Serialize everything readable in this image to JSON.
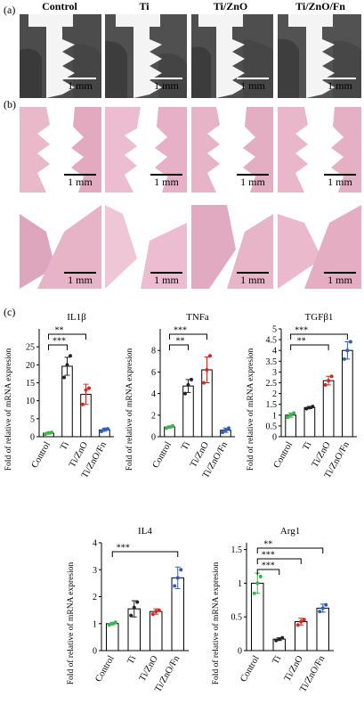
{
  "panel_a": {
    "label": "(a)",
    "columns": [
      "Control",
      "Ti",
      "Ti/ZnO",
      "Ti/ZnO/Fn"
    ],
    "scale_label": "1 mm"
  },
  "panel_b": {
    "label": "(b)",
    "scale_label": "1 mm"
  },
  "panel_c": {
    "label": "(c)"
  },
  "chart_data": [
    {
      "type": "bar",
      "title": "IL1β",
      "ylabel": "Fold of relative of mRNA expresion",
      "categories": [
        "Control",
        "Ti",
        "Ti/ZnO",
        "Ti/ZnO/Fn"
      ],
      "values": [
        1.0,
        19.6,
        11.8,
        1.9
      ],
      "errors": [
        0.3,
        2.5,
        2.8,
        0.4
      ],
      "points": [
        [
          0.7,
          1.1,
          1.2
        ],
        [
          16.5,
          20.0,
          22.5
        ],
        [
          9.0,
          13.0,
          13.5
        ],
        [
          1.5,
          2.1,
          2.2
        ]
      ],
      "ylim": [
        0,
        30
      ],
      "yticks": [
        0,
        5,
        10,
        15,
        20,
        25
      ],
      "point_colors": [
        "#3cb44b",
        "#222222",
        "#d7281f",
        "#2f5fb3"
      ],
      "significance": [
        {
          "from": 0,
          "to": 2,
          "label": "**"
        },
        {
          "from": 0,
          "to": 1,
          "label": "***"
        }
      ]
    },
    {
      "type": "bar",
      "title": "TNFa",
      "ylabel": "Fold of relative of mRNA expresion",
      "categories": [
        "Control",
        "Ti",
        "Ti/ZnO",
        "Ti/ZnO/Fn"
      ],
      "values": [
        0.9,
        4.7,
        6.2,
        0.6
      ],
      "errors": [
        0.1,
        0.6,
        1.2,
        0.2
      ],
      "points": [
        [
          0.8,
          0.9,
          1.0
        ],
        [
          4.0,
          4.8,
          5.3
        ],
        [
          5.0,
          6.2,
          7.5
        ],
        [
          0.4,
          0.6,
          0.8
        ]
      ],
      "ylim": [
        0,
        10
      ],
      "yticks": [
        0,
        2,
        4,
        6,
        8
      ],
      "point_colors": [
        "#3cb44b",
        "#222222",
        "#d7281f",
        "#2f5fb3"
      ],
      "significance": [
        {
          "from": 0,
          "to": 2,
          "label": "***"
        },
        {
          "from": 0,
          "to": 1,
          "label": "**"
        }
      ]
    },
    {
      "type": "bar",
      "title": "TGFβ1",
      "ylabel": "Fold of relative of mRNA expresion",
      "categories": [
        "Control",
        "Ti",
        "Ti/ZnO",
        "Ti/ZnO/Fn"
      ],
      "values": [
        1.0,
        1.35,
        2.6,
        4.0
      ],
      "errors": [
        0.1,
        0.05,
        0.2,
        0.4
      ],
      "points": [
        [
          0.9,
          1.0,
          1.1
        ],
        [
          1.3,
          1.35,
          1.4
        ],
        [
          2.4,
          2.6,
          2.8
        ],
        [
          3.6,
          4.0,
          4.4
        ]
      ],
      "ylim": [
        0,
        5
      ],
      "yticks": [
        0,
        0.5,
        1,
        1.5,
        2,
        2.5,
        3,
        3.5,
        4,
        4.5,
        5
      ],
      "point_colors": [
        "#3cb44b",
        "#222222",
        "#d7281f",
        "#2f5fb3"
      ],
      "significance": [
        {
          "from": 0,
          "to": 3,
          "label": "***"
        },
        {
          "from": 0,
          "to": 2,
          "label": "**"
        }
      ]
    },
    {
      "type": "bar",
      "title": "IL4",
      "ylabel": "Fold of relative of mRNA expresion",
      "categories": [
        "Control",
        "Ti",
        "Ti/ZnO",
        "Ti/ZnO/Fn"
      ],
      "values": [
        1.0,
        1.55,
        1.45,
        2.7
      ],
      "errors": [
        0.05,
        0.3,
        0.1,
        0.4
      ],
      "points": [
        [
          0.95,
          1.0,
          1.05
        ],
        [
          1.3,
          1.6,
          1.8
        ],
        [
          1.35,
          1.45,
          1.5
        ],
        [
          2.4,
          2.7,
          3.0
        ]
      ],
      "ylim": [
        0,
        4
      ],
      "yticks": [
        0,
        1,
        2,
        3,
        4
      ],
      "point_colors": [
        "#3cb44b",
        "#222222",
        "#d7281f",
        "#2f5fb3"
      ],
      "significance": [
        {
          "from": 0,
          "to": 3,
          "label": "***"
        }
      ]
    },
    {
      "type": "bar",
      "title": "Arg1",
      "ylabel": "Fold of relative of mRNA expresion",
      "categories": [
        "Control",
        "Ti",
        "Ti/ZnO",
        "Ti/ZnO/Fn"
      ],
      "values": [
        1.0,
        0.17,
        0.43,
        0.63
      ],
      "errors": [
        0.15,
        0.02,
        0.05,
        0.06
      ],
      "points": [
        [
          0.85,
          1.0,
          1.1
        ],
        [
          0.15,
          0.17,
          0.19
        ],
        [
          0.38,
          0.43,
          0.46
        ],
        [
          0.58,
          0.63,
          0.68
        ]
      ],
      "ylim": [
        0,
        1.6
      ],
      "yticks": [
        0,
        0.5,
        1,
        1.5
      ],
      "point_colors": [
        "#3cb44b",
        "#222222",
        "#d7281f",
        "#2f5fb3"
      ],
      "significance": [
        {
          "from": 0,
          "to": 3,
          "label": "**"
        },
        {
          "from": 0,
          "to": 2,
          "label": "***"
        },
        {
          "from": 0,
          "to": 1,
          "label": "***"
        }
      ]
    }
  ]
}
